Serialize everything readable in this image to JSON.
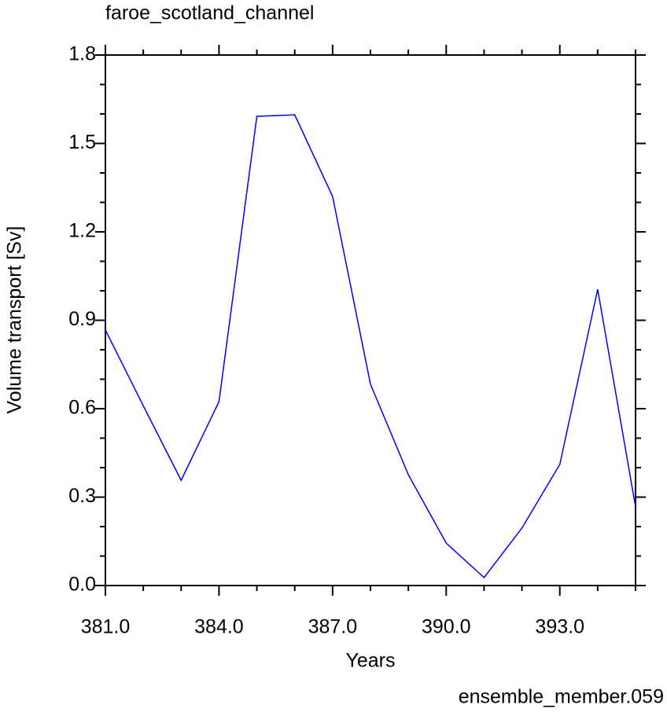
{
  "chart_data": {
    "type": "line",
    "title": "faroe_scotland_channel",
    "x_label": "Years",
    "y_label": "Volume transport [Sv]",
    "annotation": "ensemble_member.059",
    "annotation_color": "#0000ff",
    "x": [
      381,
      382,
      383,
      384,
      385,
      386,
      387,
      388,
      389,
      390,
      391,
      392,
      393,
      394,
      395
    ],
    "series": [
      {
        "color": "#0000ff",
        "values": [
          0.867,
          0.61,
          0.357,
          0.624,
          1.592,
          1.597,
          1.32,
          0.683,
          0.376,
          0.144,
          0.027,
          0.195,
          0.411,
          1.005,
          0.267
        ]
      }
    ],
    "xlim": [
      381,
      395
    ],
    "ylim": [
      0,
      1.8
    ],
    "xticks": [
      {
        "value": 381,
        "label": "381.0"
      },
      {
        "value": 384,
        "label": "384.0"
      },
      {
        "value": 387,
        "label": "387.0"
      },
      {
        "value": 390,
        "label": "390.0"
      },
      {
        "value": 393,
        "label": "393.0"
      }
    ],
    "xminorticks": [
      382,
      383,
      385,
      386,
      388,
      389,
      391,
      392,
      394,
      395
    ],
    "yticks": [
      {
        "value": 0,
        "label": "0.0"
      },
      0.3,
      0.6,
      0.9,
      1.2,
      1.5,
      1.8
    ],
    "yminorticks": [
      0.1,
      0.2,
      0.4,
      0.5,
      0.7,
      0.8,
      1.0,
      1.1,
      1.3,
      1.4,
      1.6,
      1.7
    ]
  }
}
